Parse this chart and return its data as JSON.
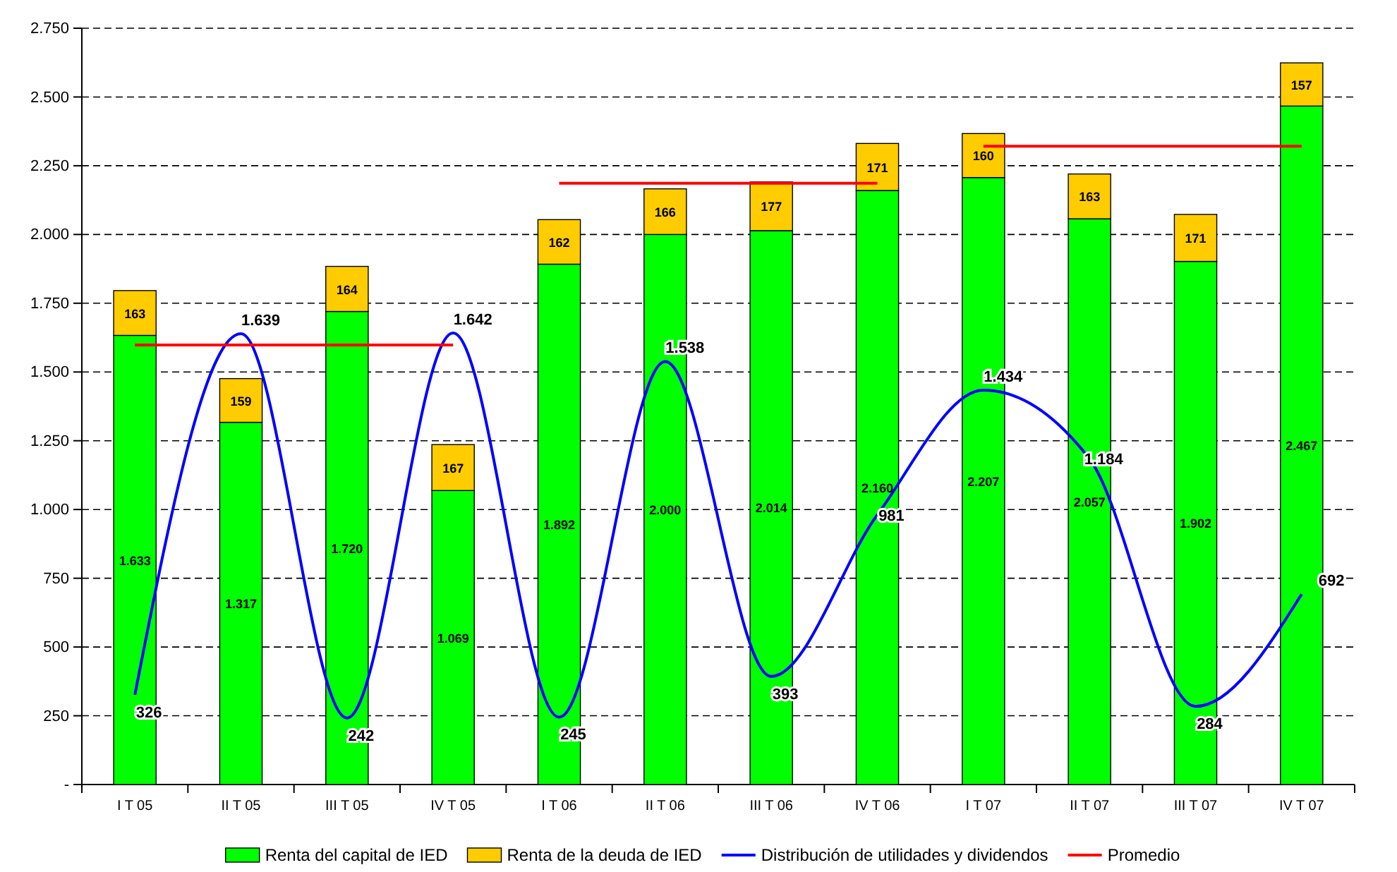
{
  "chart_data": {
    "type": "bar",
    "stacked": true,
    "categories": [
      "I T 05",
      "II T 05",
      "III T 05",
      "IV T 05",
      "I T 06",
      "II T 06",
      "III T 06",
      "IV T 06",
      "I T 07",
      "II T 07",
      "III T 07",
      "IV T 07"
    ],
    "ylim": [
      0,
      2750
    ],
    "yticks": [
      {
        "value": 0,
        "label": "-"
      },
      {
        "value": 250,
        "label": "250"
      },
      {
        "value": 500,
        "label": "500"
      },
      {
        "value": 750,
        "label": "750"
      },
      {
        "value": 1000,
        "label": "1.000"
      },
      {
        "value": 1250,
        "label": "1.250"
      },
      {
        "value": 1500,
        "label": "1.500"
      },
      {
        "value": 1750,
        "label": "1.750"
      },
      {
        "value": 2000,
        "label": "2.000"
      },
      {
        "value": 2250,
        "label": "2.250"
      },
      {
        "value": 2500,
        "label": "2.500"
      },
      {
        "value": 2750,
        "label": "2.750"
      }
    ],
    "grid": "y",
    "legend": "bottom",
    "series": [
      {
        "name": "Renta del capital de IED",
        "color": "#00ff00",
        "values": [
          1633,
          1317,
          1720,
          1069,
          1892,
          2000,
          2014,
          2160,
          2207,
          2057,
          1902,
          2467
        ],
        "value_labels": [
          "1.633",
          "1.317",
          "1.720",
          "1.069",
          "1.892",
          "2.000",
          "2.014",
          "2.160",
          "2.207",
          "2.057",
          "1.902",
          "2.467"
        ]
      },
      {
        "name": "Renta de la deuda de IED",
        "color": "#ffcc00",
        "values": [
          163,
          159,
          164,
          167,
          162,
          166,
          177,
          171,
          160,
          163,
          171,
          157
        ],
        "value_labels": [
          "163",
          "159",
          "164",
          "167",
          "162",
          "166",
          "177",
          "171",
          "160",
          "163",
          "171",
          "157"
        ]
      },
      {
        "name": "Distribución de utilidades y dividendos",
        "type": "line",
        "color": "#0000ff",
        "values": [
          326,
          1639,
          242,
          1642,
          245,
          1538,
          393,
          981,
          1434,
          1184,
          284,
          692
        ],
        "value_labels": [
          "326",
          "1.639",
          "242",
          "1.642",
          "245",
          "1.538",
          "393",
          "981",
          "1.434",
          "1.184",
          "284",
          "692"
        ]
      },
      {
        "name": "Promedio",
        "type": "line",
        "color": "#ff0000",
        "values": [
          1598,
          1598,
          1598,
          1598,
          null,
          null,
          null,
          null,
          null,
          null,
          null,
          null
        ]
      },
      {
        "type": "line",
        "color": "#ff0000",
        "values": [
          null,
          null,
          null,
          null,
          2186,
          2186,
          2186,
          2186,
          null,
          null,
          null,
          null
        ]
      },
      {
        "type": "line",
        "color": "#ff0000",
        "values": [
          null,
          null,
          null,
          null,
          null,
          null,
          null,
          null,
          2321,
          2321,
          2321,
          2321
        ]
      }
    ]
  }
}
